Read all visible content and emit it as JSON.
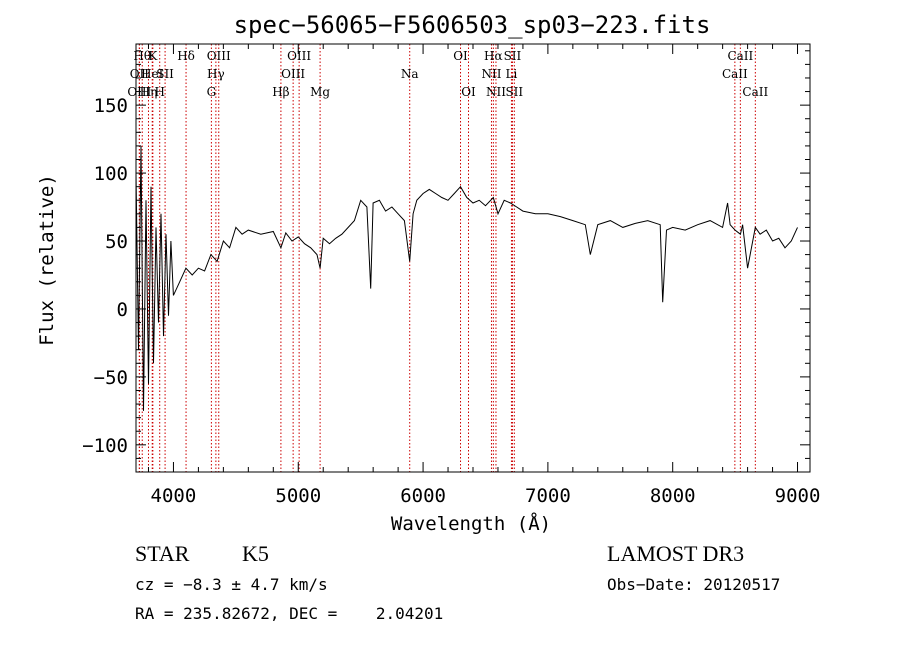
{
  "chart_data": {
    "type": "line",
    "title": "spec−56065−F5606503_sp03−223.fits",
    "xlabel": "Wavelength (Å)",
    "ylabel": "Flux (relative)",
    "xlim": [
      3700,
      9100
    ],
    "ylim": [
      -120,
      195
    ],
    "xticks": [
      4000,
      5000,
      6000,
      7000,
      8000,
      9000
    ],
    "xtick_labels": [
      "4000",
      "5000",
      "6000",
      "7000",
      "8000",
      "9000"
    ],
    "yticks": [
      -100,
      -50,
      0,
      50,
      100,
      150
    ],
    "ytick_labels": [
      "−100",
      "−50",
      "0",
      "50",
      "100",
      "150"
    ],
    "grid": false,
    "series": [
      {
        "name": "spectrum",
        "x": [
          3700,
          3720,
          3740,
          3760,
          3780,
          3800,
          3820,
          3840,
          3860,
          3880,
          3900,
          3920,
          3940,
          3960,
          3980,
          4000,
          4050,
          4100,
          4150,
          4200,
          4250,
          4300,
          4350,
          4400,
          4450,
          4500,
          4550,
          4600,
          4700,
          4800,
          4861,
          4900,
          4950,
          5000,
          5050,
          5100,
          5150,
          5175,
          5200,
          5250,
          5300,
          5350,
          5400,
          5450,
          5500,
          5550,
          5580,
          5600,
          5650,
          5700,
          5750,
          5800,
          5850,
          5893,
          5920,
          5950,
          6000,
          6050,
          6100,
          6150,
          6200,
          6250,
          6300,
          6350,
          6400,
          6450,
          6500,
          6563,
          6600,
          6650,
          6700,
          6750,
          6800,
          6900,
          7000,
          7100,
          7200,
          7300,
          7340,
          7400,
          7500,
          7600,
          7700,
          7800,
          7900,
          7920,
          7950,
          8000,
          8100,
          8200,
          8300,
          8400,
          8440,
          8460,
          8500,
          8542,
          8560,
          8600,
          8662,
          8700,
          8750,
          8800,
          8850,
          8900,
          8950,
          9000
        ],
        "y": [
          100,
          -30,
          120,
          -75,
          80,
          -55,
          90,
          -40,
          60,
          -10,
          70,
          -20,
          55,
          -5,
          50,
          10,
          20,
          30,
          25,
          30,
          28,
          40,
          35,
          50,
          45,
          60,
          55,
          58,
          55,
          57,
          45,
          56,
          50,
          53,
          48,
          45,
          40,
          30,
          52,
          48,
          52,
          55,
          60,
          65,
          80,
          75,
          15,
          78,
          80,
          72,
          75,
          70,
          65,
          35,
          70,
          80,
          85,
          88,
          85,
          82,
          80,
          85,
          90,
          82,
          78,
          80,
          76,
          82,
          70,
          80,
          78,
          75,
          72,
          70,
          70,
          68,
          65,
          62,
          40,
          62,
          65,
          60,
          63,
          65,
          62,
          5,
          58,
          60,
          58,
          62,
          65,
          60,
          78,
          62,
          58,
          55,
          62,
          30,
          60,
          55,
          58,
          50,
          52,
          45,
          50,
          60
        ]
      }
    ],
    "lines": [
      {
        "x": 3750,
        "label": "Hθ",
        "row": 0
      },
      {
        "x": 3727,
        "label": "OII",
        "row": 1
      },
      {
        "x": 3727,
        "label": "OIII",
        "row": 2
      },
      {
        "x": 3835,
        "label": "K",
        "row": 0
      },
      {
        "x": 3830,
        "label": "HeI",
        "row": 1
      },
      {
        "x": 3800,
        "label": "Hη",
        "row": 2
      },
      {
        "x": 3933,
        "label": "SII",
        "row": 1
      },
      {
        "x": 3890,
        "label": "H",
        "row": 2
      },
      {
        "x": 4101,
        "label": "Hδ",
        "row": 0
      },
      {
        "x": 4363,
        "label": "OIII",
        "row": 0
      },
      {
        "x": 4340,
        "label": "Hγ",
        "row": 1
      },
      {
        "x": 4304,
        "label": "G",
        "row": 2
      },
      {
        "x": 4861,
        "label": "Hβ",
        "row": 2
      },
      {
        "x": 5007,
        "label": "OIII",
        "row": 0
      },
      {
        "x": 4959,
        "label": "OIII",
        "row": 1
      },
      {
        "x": 5175,
        "label": "Mg",
        "row": 2
      },
      {
        "x": 5893,
        "label": "Na",
        "row": 1
      },
      {
        "x": 6300,
        "label": "OI",
        "row": 0
      },
      {
        "x": 6364,
        "label": "OI",
        "row": 2
      },
      {
        "x": 6563,
        "label": "Hα",
        "row": 0
      },
      {
        "x": 6548,
        "label": "NII",
        "row": 1
      },
      {
        "x": 6584,
        "label": "NII",
        "row": 2
      },
      {
        "x": 6716,
        "label": "SII",
        "row": 0
      },
      {
        "x": 6708,
        "label": "Li",
        "row": 1
      },
      {
        "x": 6731,
        "label": "SII",
        "row": 2
      },
      {
        "x": 8542,
        "label": "CaII",
        "row": 0
      },
      {
        "x": 8498,
        "label": "CaII",
        "row": 1
      },
      {
        "x": 8662,
        "label": "CaII",
        "row": 2
      }
    ]
  },
  "info": {
    "object_class": "STAR",
    "subclass": "K5",
    "survey": "LAMOST DR3",
    "cz": "cz = −8.3 ± 4.7 km/s",
    "obs_date": "Obs−Date: 20120517",
    "coords": "RA = 235.82672, DEC =    2.04201"
  },
  "colors": {
    "line": "#000000",
    "marker": "#cc0000",
    "axes": "#000000"
  }
}
